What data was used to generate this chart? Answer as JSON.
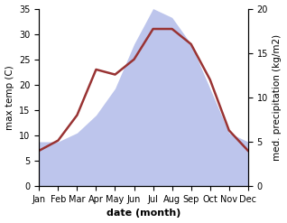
{
  "months": [
    "Jan",
    "Feb",
    "Mar",
    "Apr",
    "May",
    "Jun",
    "Jul",
    "Aug",
    "Sep",
    "Oct",
    "Nov",
    "Dec"
  ],
  "x": [
    1,
    2,
    3,
    4,
    5,
    6,
    7,
    8,
    9,
    10,
    11,
    12
  ],
  "temperature": [
    7,
    9,
    14,
    23,
    22,
    25,
    31,
    31,
    28,
    21,
    11,
    7
  ],
  "precipitation_kg": [
    5,
    5,
    6,
    8,
    11,
    16,
    20,
    19,
    16,
    11,
    6,
    5
  ],
  "temp_color": "#993333",
  "precip_fill_color": "#bdc5ec",
  "ylabel_left": "max temp (C)",
  "ylabel_right": "med. precipitation (kg/m2)",
  "xlabel": "date (month)",
  "ylim_left": [
    0,
    35
  ],
  "ylim_right": [
    0,
    20
  ],
  "yticks_left": [
    0,
    5,
    10,
    15,
    20,
    25,
    30,
    35
  ],
  "yticks_right": [
    0,
    5,
    10,
    15,
    20
  ],
  "background_color": "#ffffff"
}
